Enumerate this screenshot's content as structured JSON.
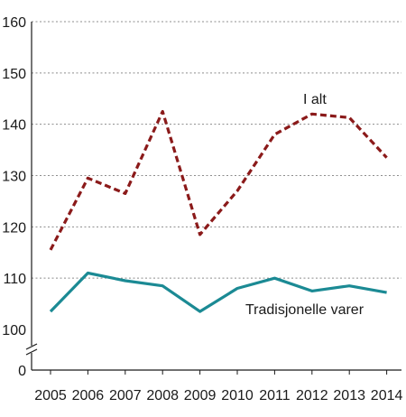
{
  "chart_data": {
    "type": "line",
    "title": "",
    "xlabel": "",
    "ylabel": "",
    "categories": [
      "2005",
      "2006",
      "2007",
      "2008",
      "2009",
      "2010",
      "2011",
      "2012",
      "2013",
      "2014"
    ],
    "y_ticks": [
      "0",
      "100",
      "110",
      "120",
      "130",
      "140",
      "150",
      "160"
    ],
    "ylim": [
      0,
      160
    ],
    "axis_break": [
      0,
      100
    ],
    "grid": true,
    "legend": "none (series labelled directly on chart)",
    "series": [
      {
        "name": "I alt",
        "color": "#8B1A1A",
        "line_style": "dashed",
        "values": [
          115.5,
          129.5,
          126.5,
          142.5,
          118.5,
          127,
          138,
          142,
          141.3,
          133.5
        ]
      },
      {
        "name": "Tradisjonelle varer",
        "color": "#1B8A94",
        "line_style": "solid",
        "values": [
          103.5,
          111,
          109.5,
          108.5,
          103.5,
          108,
          110,
          107.5,
          108.5,
          107.2
        ]
      }
    ]
  }
}
